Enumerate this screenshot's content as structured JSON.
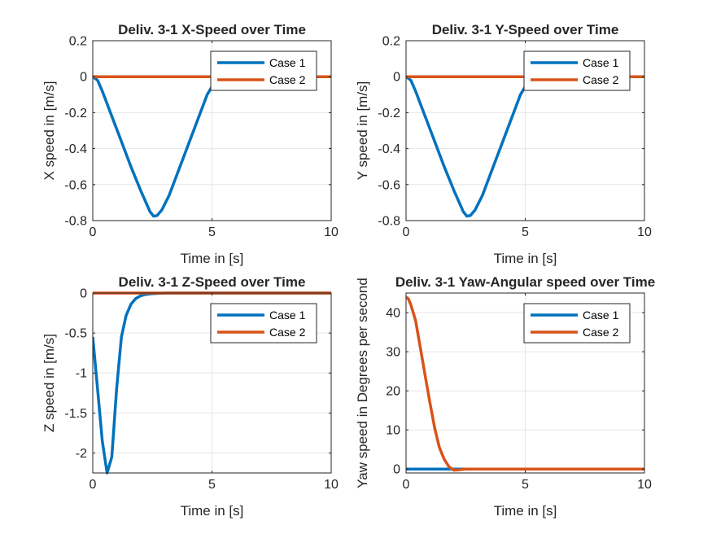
{
  "colors": {
    "case1": "#0072BD",
    "case2": "#D95319",
    "axis": "#262626",
    "grid": "#E6E6E6"
  },
  "chart_data": [
    {
      "type": "line",
      "title": "Deliv. 3-1 X-Speed over Time",
      "xlabel": "Time in [s]",
      "ylabel": "X speed in [m/s]",
      "xlim": [
        0,
        10
      ],
      "ylim": [
        -0.8,
        0.2
      ],
      "xticks": [
        0,
        5,
        10
      ],
      "xtick_labels": [
        "0",
        "5",
        "10"
      ],
      "yticks": [
        -0.8,
        -0.6,
        -0.4,
        -0.2,
        0,
        0.2
      ],
      "ytick_labels": [
        "-0.8",
        "-0.6",
        "-0.4",
        "-0.2",
        "0",
        "0.2"
      ],
      "grid": true,
      "legend": "top-right",
      "series": [
        {
          "name": "Case 1",
          "x": [
            0,
            0.2,
            0.4,
            0.8,
            1.2,
            1.6,
            2.0,
            2.4,
            2.55,
            2.7,
            2.9,
            3.2,
            3.6,
            4.0,
            4.4,
            4.8,
            5.2,
            5.5
          ],
          "y": [
            0,
            -0.02,
            -0.08,
            -0.22,
            -0.36,
            -0.5,
            -0.63,
            -0.75,
            -0.775,
            -0.772,
            -0.74,
            -0.66,
            -0.52,
            -0.38,
            -0.24,
            -0.1,
            -0.01,
            0
          ]
        },
        {
          "name": "Case 2",
          "x": [
            0,
            10
          ],
          "y": [
            0,
            0
          ]
        }
      ]
    },
    {
      "type": "line",
      "title": "Deliv. 3-1 Y-Speed over Time",
      "xlabel": "Time in [s]",
      "ylabel": "Y speed in [m/s]",
      "xlim": [
        0,
        10
      ],
      "ylim": [
        -0.8,
        0.2
      ],
      "xticks": [
        0,
        5,
        10
      ],
      "xtick_labels": [
        "0",
        "5",
        "10"
      ],
      "yticks": [
        -0.8,
        -0.6,
        -0.4,
        -0.2,
        0,
        0.2
      ],
      "ytick_labels": [
        "-0.8",
        "-0.6",
        "-0.4",
        "-0.2",
        "0",
        "0.2"
      ],
      "grid": true,
      "legend": "top-right",
      "series": [
        {
          "name": "Case 1",
          "x": [
            0,
            0.2,
            0.4,
            0.8,
            1.2,
            1.6,
            2.0,
            2.4,
            2.55,
            2.7,
            2.9,
            3.2,
            3.6,
            4.0,
            4.4,
            4.8,
            5.2,
            5.5
          ],
          "y": [
            0,
            -0.02,
            -0.08,
            -0.22,
            -0.36,
            -0.5,
            -0.63,
            -0.75,
            -0.775,
            -0.772,
            -0.74,
            -0.66,
            -0.52,
            -0.38,
            -0.24,
            -0.1,
            -0.01,
            0
          ]
        },
        {
          "name": "Case 2",
          "x": [
            0,
            10
          ],
          "y": [
            0,
            0
          ]
        }
      ]
    },
    {
      "type": "line",
      "title": "Deliv. 3-1 Z-Speed over Time",
      "xlabel": "Time in [s]",
      "ylabel": "Z speed in [m/s]",
      "xlim": [
        0,
        10
      ],
      "ylim": [
        -2.25,
        0
      ],
      "xticks": [
        0,
        5,
        10
      ],
      "xtick_labels": [
        "0",
        "5",
        "10"
      ],
      "yticks": [
        -2,
        -1.5,
        -1,
        -0.5,
        0
      ],
      "ytick_labels": [
        "-2",
        "-1.5",
        "-1",
        "-0.5",
        "0"
      ],
      "grid": true,
      "legend": "top-right",
      "series": [
        {
          "name": "Case 1",
          "x": [
            0,
            0.2,
            0.4,
            0.6,
            0.8,
            1.0,
            1.2,
            1.4,
            1.6,
            1.8,
            2.0,
            2.2,
            2.4,
            2.8,
            3.2,
            4,
            10
          ],
          "y": [
            -0.55,
            -1.2,
            -1.85,
            -2.25,
            -2.05,
            -1.2,
            -0.55,
            -0.28,
            -0.14,
            -0.07,
            -0.035,
            -0.018,
            -0.01,
            -0.003,
            0,
            0,
            0
          ]
        },
        {
          "name": "Case 2",
          "x": [
            0,
            10
          ],
          "y": [
            0,
            0
          ]
        }
      ]
    },
    {
      "type": "line",
      "title": "Deliv. 3-1 Yaw-Angular speed over Time",
      "xlabel": "Time in [s]",
      "ylabel": "Yaw speed in Degrees per second",
      "xlim": [
        0,
        10
      ],
      "ylim": [
        -1,
        45
      ],
      "xticks": [
        0,
        5,
        10
      ],
      "xtick_labels": [
        "0",
        "5",
        "10"
      ],
      "yticks": [
        0,
        10,
        20,
        30,
        40
      ],
      "ytick_labels": [
        "0",
        "10",
        "20",
        "30",
        "40"
      ],
      "grid": true,
      "legend": "top-right",
      "series": [
        {
          "name": "Case 1",
          "x": [
            0,
            10
          ],
          "y": [
            0,
            0
          ]
        },
        {
          "name": "Case 2",
          "x": [
            0,
            0.1,
            0.2,
            0.4,
            0.6,
            0.8,
            1.0,
            1.2,
            1.4,
            1.6,
            1.8,
            2.0,
            2.2,
            2.5,
            2.8,
            3.2,
            4,
            10
          ],
          "y": [
            44,
            43.5,
            42,
            38,
            31,
            24,
            17,
            10.5,
            5.5,
            2.5,
            0.6,
            -0.3,
            -0.2,
            0,
            0,
            0,
            0,
            0
          ]
        }
      ]
    }
  ]
}
